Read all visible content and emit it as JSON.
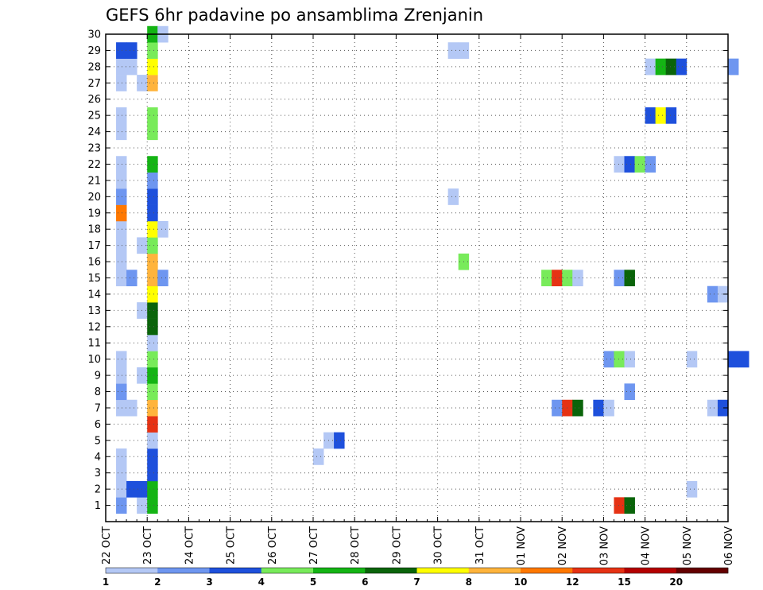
{
  "chart_data": {
    "type": "heatmap",
    "title": "GEFS 6hr padavine po ansamblima Zrenjanin",
    "xlabel": "",
    "ylabel": "",
    "x_ticks": [
      "22 OCT",
      "23 OCT",
      "24 OCT",
      "25 OCT",
      "26 OCT",
      "27 OCT",
      "28 OCT",
      "29 OCT",
      "30 OCT",
      "31 OCT",
      "01 NOV",
      "02 NOV",
      "03 NOV",
      "04 NOV",
      "05 NOV",
      "06 NOV"
    ],
    "y_ticks": [
      "1",
      "2",
      "3",
      "4",
      "5",
      "6",
      "7",
      "8",
      "9",
      "10",
      "11",
      "12",
      "13",
      "14",
      "15",
      "16",
      "17",
      "18",
      "19",
      "20",
      "21",
      "22",
      "23",
      "24",
      "25",
      "26",
      "27",
      "28",
      "29",
      "30"
    ],
    "x_unit": "6-hour steps from 22 OCT 00z",
    "ylim": [
      0,
      30
    ],
    "grid": true,
    "colorbar": {
      "bins": [
        {
          "color": "#b4c8f5"
        },
        {
          "color": "#6e96f0"
        },
        {
          "color": "#1e50dc"
        },
        {
          "color": "#78eb5a"
        },
        {
          "color": "#14b414"
        },
        {
          "color": "#0a640a"
        },
        {
          "color": "#ffff00"
        },
        {
          "color": "#ffb43c"
        },
        {
          "color": "#ff7800"
        },
        {
          "color": "#e63214"
        },
        {
          "color": "#b40000"
        },
        {
          "color": "#640000"
        }
      ],
      "labels": [
        "1",
        "2",
        "3",
        "4",
        "5",
        "6",
        "7",
        "8",
        "10",
        "12",
        "15",
        "20"
      ]
    },
    "cells": [
      [
        1,
        1,
        2
      ],
      [
        1,
        2,
        1
      ],
      [
        1,
        3,
        1
      ],
      [
        1,
        4,
        1
      ],
      [
        1,
        7,
        1
      ],
      [
        1,
        8,
        2
      ],
      [
        1,
        9,
        1
      ],
      [
        1,
        10,
        1
      ],
      [
        1,
        15,
        1
      ],
      [
        1,
        16,
        1
      ],
      [
        1,
        17,
        1
      ],
      [
        1,
        18,
        1
      ],
      [
        1,
        19,
        9
      ],
      [
        1,
        20,
        2
      ],
      [
        1,
        21,
        1
      ],
      [
        1,
        22,
        1
      ],
      [
        1,
        24,
        1
      ],
      [
        1,
        25,
        1
      ],
      [
        1,
        27,
        1
      ],
      [
        1,
        28,
        1
      ],
      [
        1,
        29,
        3
      ],
      [
        2,
        2,
        3
      ],
      [
        2,
        7,
        1
      ],
      [
        2,
        15,
        2
      ],
      [
        2,
        28,
        1
      ],
      [
        2,
        29,
        3
      ],
      [
        3,
        1,
        1
      ],
      [
        3,
        2,
        3
      ],
      [
        3,
        9,
        1
      ],
      [
        3,
        13,
        1
      ],
      [
        3,
        17,
        1
      ],
      [
        3,
        27,
        1
      ],
      [
        4,
        1,
        5
      ],
      [
        4,
        2,
        5
      ],
      [
        4,
        3,
        3
      ],
      [
        4,
        4,
        3
      ],
      [
        4,
        5,
        1
      ],
      [
        4,
        6,
        10
      ],
      [
        4,
        7,
        8
      ],
      [
        4,
        8,
        4
      ],
      [
        4,
        9,
        5
      ],
      [
        4,
        10,
        4
      ],
      [
        4,
        11,
        1
      ],
      [
        4,
        12,
        6
      ],
      [
        4,
        13,
        6
      ],
      [
        4,
        14,
        7
      ],
      [
        4,
        15,
        8
      ],
      [
        4,
        16,
        8
      ],
      [
        4,
        17,
        4
      ],
      [
        4,
        18,
        7
      ],
      [
        4,
        19,
        3
      ],
      [
        4,
        20,
        3
      ],
      [
        4,
        21,
        2
      ],
      [
        4,
        22,
        5
      ],
      [
        4,
        24,
        4
      ],
      [
        4,
        25,
        4
      ],
      [
        4,
        27,
        8
      ],
      [
        4,
        28,
        7
      ],
      [
        4,
        29,
        4
      ],
      [
        4,
        30,
        5
      ],
      [
        5,
        15,
        2
      ],
      [
        5,
        18,
        1
      ],
      [
        5,
        30,
        1
      ],
      [
        20,
        4,
        1
      ],
      [
        21,
        5,
        1
      ],
      [
        22,
        5,
        3
      ],
      [
        33,
        20,
        1
      ],
      [
        33,
        29,
        1
      ],
      [
        34,
        29,
        1
      ],
      [
        34,
        16,
        4
      ],
      [
        42,
        15,
        4
      ],
      [
        43,
        15,
        10
      ],
      [
        44,
        15,
        4
      ],
      [
        45,
        15,
        1
      ],
      [
        43,
        7,
        2
      ],
      [
        44,
        7,
        10
      ],
      [
        45,
        7,
        6
      ],
      [
        47,
        7,
        3
      ],
      [
        48,
        7,
        1
      ],
      [
        48,
        10,
        2
      ],
      [
        49,
        10,
        4
      ],
      [
        50,
        10,
        1
      ],
      [
        49,
        1,
        10
      ],
      [
        50,
        1,
        6
      ],
      [
        49,
        15,
        2
      ],
      [
        50,
        15,
        6
      ],
      [
        50,
        8,
        2
      ],
      [
        49,
        22,
        1
      ],
      [
        50,
        22,
        3
      ],
      [
        51,
        22,
        4
      ],
      [
        52,
        22,
        2
      ],
      [
        52,
        25,
        3
      ],
      [
        53,
        25,
        7
      ],
      [
        54,
        25,
        3
      ],
      [
        52,
        28,
        1
      ],
      [
        53,
        28,
        5
      ],
      [
        54,
        28,
        6
      ],
      [
        55,
        28,
        3
      ],
      [
        56,
        2,
        1
      ],
      [
        56,
        10,
        1
      ],
      [
        58,
        7,
        1
      ],
      [
        59,
        7,
        3
      ],
      [
        58,
        14,
        2
      ],
      [
        59,
        14,
        1
      ],
      [
        60,
        28,
        2
      ],
      [
        60,
        10,
        3
      ],
      [
        61,
        10,
        3
      ]
    ]
  }
}
